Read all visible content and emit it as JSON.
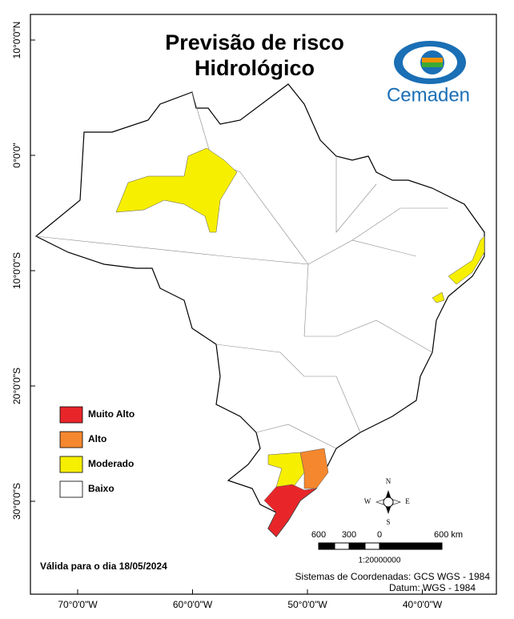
{
  "title": {
    "lines": [
      "Previsão de risco",
      "Hidrológico"
    ]
  },
  "logo": {
    "text": "Cemaden"
  },
  "legend": {
    "items": [
      {
        "label": "Muito Alto",
        "color": "#e8262a"
      },
      {
        "label": "Alto",
        "color": "#f5872e"
      },
      {
        "label": "Moderado",
        "color": "#f7ef00"
      },
      {
        "label": "Baixo",
        "color": "#ffffff"
      }
    ]
  },
  "validity": "Válida para o dia 18/05/2024",
  "axes": {
    "left": [
      "10°0'0\"N",
      "0°0'0\"",
      "10°0'0\"S",
      "20°0'0\"S",
      "30°0'0\"S"
    ],
    "bottom": [
      "70°0'0\"W",
      "60°0'0\"W",
      "50°0'0\"W",
      "40°0'0\"W"
    ]
  },
  "compass": {
    "n": "N",
    "s": "S",
    "e": "E",
    "w": "W"
  },
  "scale_bar": {
    "labels": [
      "600",
      "300",
      "0",
      "600 km"
    ],
    "ratio": "1:20000000"
  },
  "credits": [
    "Sistemas de Coordenadas: GCS WGS - 1984",
    "Datum: WGS - 1984"
  ]
}
